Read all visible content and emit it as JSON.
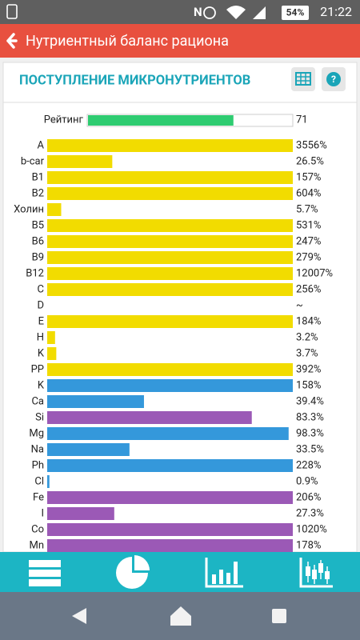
{
  "status_bar": {
    "battery": "54%",
    "time": "21:22"
  },
  "app_bar": {
    "title": "Нутриентный баланс рациона"
  },
  "card": {
    "title": "ПОСТУПЛЕНИЕ МИКРОНУТРИЕНТОВ"
  },
  "rating": {
    "label": "Рейтинг",
    "value": 71,
    "xlim": [
      0,
      100
    ],
    "color": "#2ecc71"
  },
  "chart_data": {
    "type": "bar",
    "orientation": "horizontal",
    "categories": [
      "A",
      "b-car",
      "B1",
      "B2",
      "Холин",
      "B5",
      "B6",
      "B9",
      "B12",
      "C",
      "D",
      "E",
      "H",
      "K",
      "PP",
      "K",
      "Ca",
      "Si",
      "Mg",
      "Na",
      "Ph",
      "Cl",
      "Fe",
      "I",
      "Co",
      "Mn"
    ],
    "values": [
      3556,
      26.5,
      157,
      604,
      5.7,
      531,
      247,
      279,
      12007,
      256,
      null,
      184,
      3.2,
      3.7,
      392,
      158,
      39.4,
      83.3,
      98.3,
      33.5,
      228,
      0.9,
      206,
      27.3,
      1020,
      178
    ],
    "value_labels": [
      "3556%",
      "26.5%",
      "157%",
      "604%",
      "5.7%",
      "531%",
      "247%",
      "279%",
      "12007%",
      "256%",
      "~",
      "184%",
      "3.2%",
      "3.7%",
      "392%",
      "158%",
      "39.4%",
      "83.3%",
      "98.3%",
      "33.5%",
      "228%",
      "0.9%",
      "206%",
      "27.3%",
      "1020%",
      "178%"
    ],
    "colors": [
      "#f2dc00",
      "#f2dc00",
      "#f2dc00",
      "#f2dc00",
      "#f2dc00",
      "#f2dc00",
      "#f2dc00",
      "#f2dc00",
      "#f2dc00",
      "#f2dc00",
      "#f2dc00",
      "#f2dc00",
      "#f2dc00",
      "#f2dc00",
      "#f2dc00",
      "#3498db",
      "#3498db",
      "#9b59b6",
      "#3498db",
      "#3498db",
      "#3498db",
      "#3498db",
      "#9b59b6",
      "#9b59b6",
      "#9b59b6",
      "#9b59b6"
    ],
    "xlim": [
      0,
      100
    ]
  }
}
